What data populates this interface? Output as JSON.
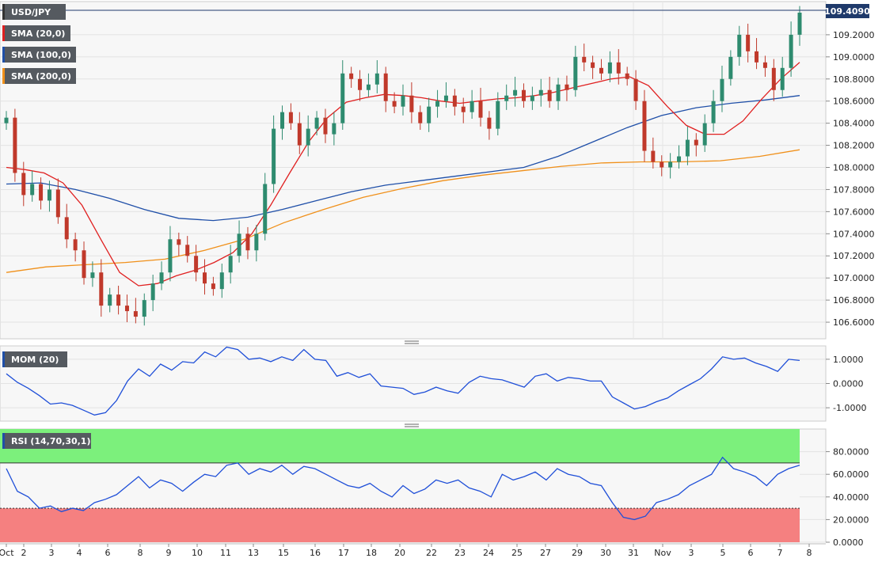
{
  "chart_data": [
    {
      "type": "candlestick",
      "symbol": "USD/JPY",
      "last_price": "109.4090",
      "y_range": [
        106.45,
        109.5
      ],
      "y_ticks": [
        "106.6000",
        "106.8000",
        "107.0000",
        "107.2000",
        "107.4000",
        "107.6000",
        "107.8000",
        "108.0000",
        "108.2000",
        "108.4000",
        "108.6000",
        "108.8000",
        "109.0000",
        "109.2000"
      ],
      "y_tick_values": [
        106.6,
        106.8,
        107.0,
        107.2,
        107.4,
        107.6,
        107.8,
        108.0,
        108.2,
        108.4,
        108.6,
        108.8,
        109.0,
        109.2
      ],
      "legend": [
        "USD/JPY",
        "SMA (20,0)",
        "SMA (100,0)",
        "SMA (200,0)"
      ],
      "colors": {
        "up": "#2e8b6f",
        "down": "#c0392b",
        "sma20": "#e02020",
        "sma100": "#1f4fa8",
        "sma200": "#f0901a"
      },
      "closes": [
        108.45,
        107.95,
        107.75,
        107.85,
        107.7,
        107.8,
        107.55,
        107.35,
        107.25,
        107.0,
        107.05,
        106.75,
        106.85,
        106.75,
        106.7,
        106.65,
        106.8,
        106.95,
        107.05,
        107.35,
        107.3,
        107.2,
        107.05,
        106.95,
        106.9,
        107.05,
        107.2,
        107.4,
        107.25,
        107.4,
        107.85,
        108.35,
        108.5,
        108.4,
        108.2,
        108.35,
        108.45,
        108.3,
        108.4,
        108.85,
        108.8,
        108.7,
        108.75,
        108.85,
        108.6,
        108.55,
        108.65,
        108.5,
        108.4,
        108.55,
        108.6,
        108.65,
        108.55,
        108.5,
        108.6,
        108.45,
        108.35,
        108.6,
        108.65,
        108.7,
        108.6,
        108.65,
        108.7,
        108.6,
        108.75,
        108.7,
        109.0,
        108.95,
        108.9,
        108.85,
        108.95,
        108.85,
        108.8,
        108.6,
        108.15,
        108.05,
        108.0,
        108.05,
        108.1,
        108.25,
        108.2,
        108.4,
        108.6,
        108.8,
        109.0,
        109.2,
        109.05,
        108.95,
        108.9,
        108.7,
        108.9,
        109.2,
        109.4
      ],
      "sma20": [
        108.0,
        107.98,
        107.95,
        107.86,
        107.66,
        107.35,
        107.05,
        106.93,
        106.95,
        107.02,
        107.07,
        107.14,
        107.23,
        107.4,
        107.66,
        107.95,
        108.23,
        108.45,
        108.59,
        108.63,
        108.66,
        108.65,
        108.63,
        108.6,
        108.58,
        108.6,
        108.62,
        108.63,
        108.65,
        108.68,
        108.72,
        108.76,
        108.8,
        108.82,
        108.74,
        108.55,
        108.38,
        108.3,
        108.3,
        108.42,
        108.62,
        108.8,
        108.95
      ],
      "sma100": [
        107.85,
        107.86,
        107.8,
        107.72,
        107.62,
        107.54,
        107.52,
        107.55,
        107.62,
        107.7,
        107.78,
        107.84,
        107.88,
        107.92,
        107.96,
        108.0,
        108.1,
        108.23,
        108.36,
        108.47,
        108.54,
        108.58,
        108.61,
        108.65
      ],
      "sma200": [
        107.05,
        107.1,
        107.12,
        107.14,
        107.17,
        107.25,
        107.35,
        107.5,
        107.62,
        107.73,
        107.81,
        107.88,
        107.93,
        107.97,
        108.01,
        108.04,
        108.05,
        108.05,
        108.06,
        108.1,
        108.16
      ],
      "x_ticks": [
        "Oct",
        "2",
        "3",
        "4",
        "6",
        "8",
        "9",
        "10",
        "11",
        "13",
        "15",
        "16",
        "17",
        "18",
        "20",
        "22",
        "23",
        "24",
        "25",
        "27",
        "29",
        "30",
        "31",
        "Nov",
        "3",
        "5",
        "6",
        "7",
        "8"
      ]
    },
    {
      "type": "line",
      "name": "MOM (20)",
      "y_range": [
        -1.55,
        1.55
      ],
      "y_ticks": [
        "1.0000",
        "0.0000",
        "-1.0000"
      ],
      "y_tick_values": [
        1.0,
        0.0,
        -1.0
      ],
      "values": [
        0.4,
        0.05,
        -0.2,
        -0.5,
        -0.85,
        -0.8,
        -0.9,
        -1.1,
        -1.3,
        -1.2,
        -0.7,
        0.1,
        0.6,
        0.3,
        0.8,
        0.55,
        0.9,
        0.85,
        1.3,
        1.1,
        1.5,
        1.4,
        1.0,
        1.05,
        0.9,
        1.1,
        0.95,
        1.4,
        1.0,
        0.95,
        0.3,
        0.45,
        0.25,
        0.4,
        -0.1,
        -0.15,
        -0.2,
        -0.45,
        -0.35,
        -0.15,
        -0.3,
        -0.4,
        0.05,
        0.3,
        0.2,
        0.15,
        0.0,
        -0.15,
        0.3,
        0.4,
        0.1,
        0.25,
        0.2,
        0.1,
        0.1,
        -0.55,
        -0.8,
        -1.05,
        -0.95,
        -0.75,
        -0.6,
        -0.3,
        -0.05,
        0.2,
        0.6,
        1.1,
        1.0,
        1.05,
        0.85,
        0.7,
        0.5,
        1.0,
        0.95
      ]
    },
    {
      "type": "line",
      "name": "RSI (14,70,30,1)",
      "y_range": [
        0,
        100
      ],
      "y_ticks": [
        "80.0000",
        "60.0000",
        "40.0000",
        "20.0000",
        "0.0000"
      ],
      "y_tick_values": [
        80,
        60,
        40,
        20,
        0
      ],
      "overbought": 70,
      "oversold": 30,
      "values": [
        65,
        45,
        40,
        30,
        32,
        27,
        30,
        28,
        35,
        38,
        42,
        50,
        58,
        48,
        55,
        52,
        45,
        53,
        60,
        58,
        68,
        70,
        60,
        65,
        62,
        68,
        60,
        67,
        65,
        60,
        55,
        50,
        48,
        52,
        45,
        40,
        50,
        43,
        47,
        55,
        52,
        55,
        48,
        45,
        40,
        60,
        55,
        58,
        62,
        55,
        65,
        60,
        58,
        52,
        50,
        35,
        22,
        20,
        23,
        35,
        38,
        42,
        50,
        55,
        60,
        75,
        65,
        62,
        58,
        50,
        60,
        65,
        68
      ]
    }
  ]
}
